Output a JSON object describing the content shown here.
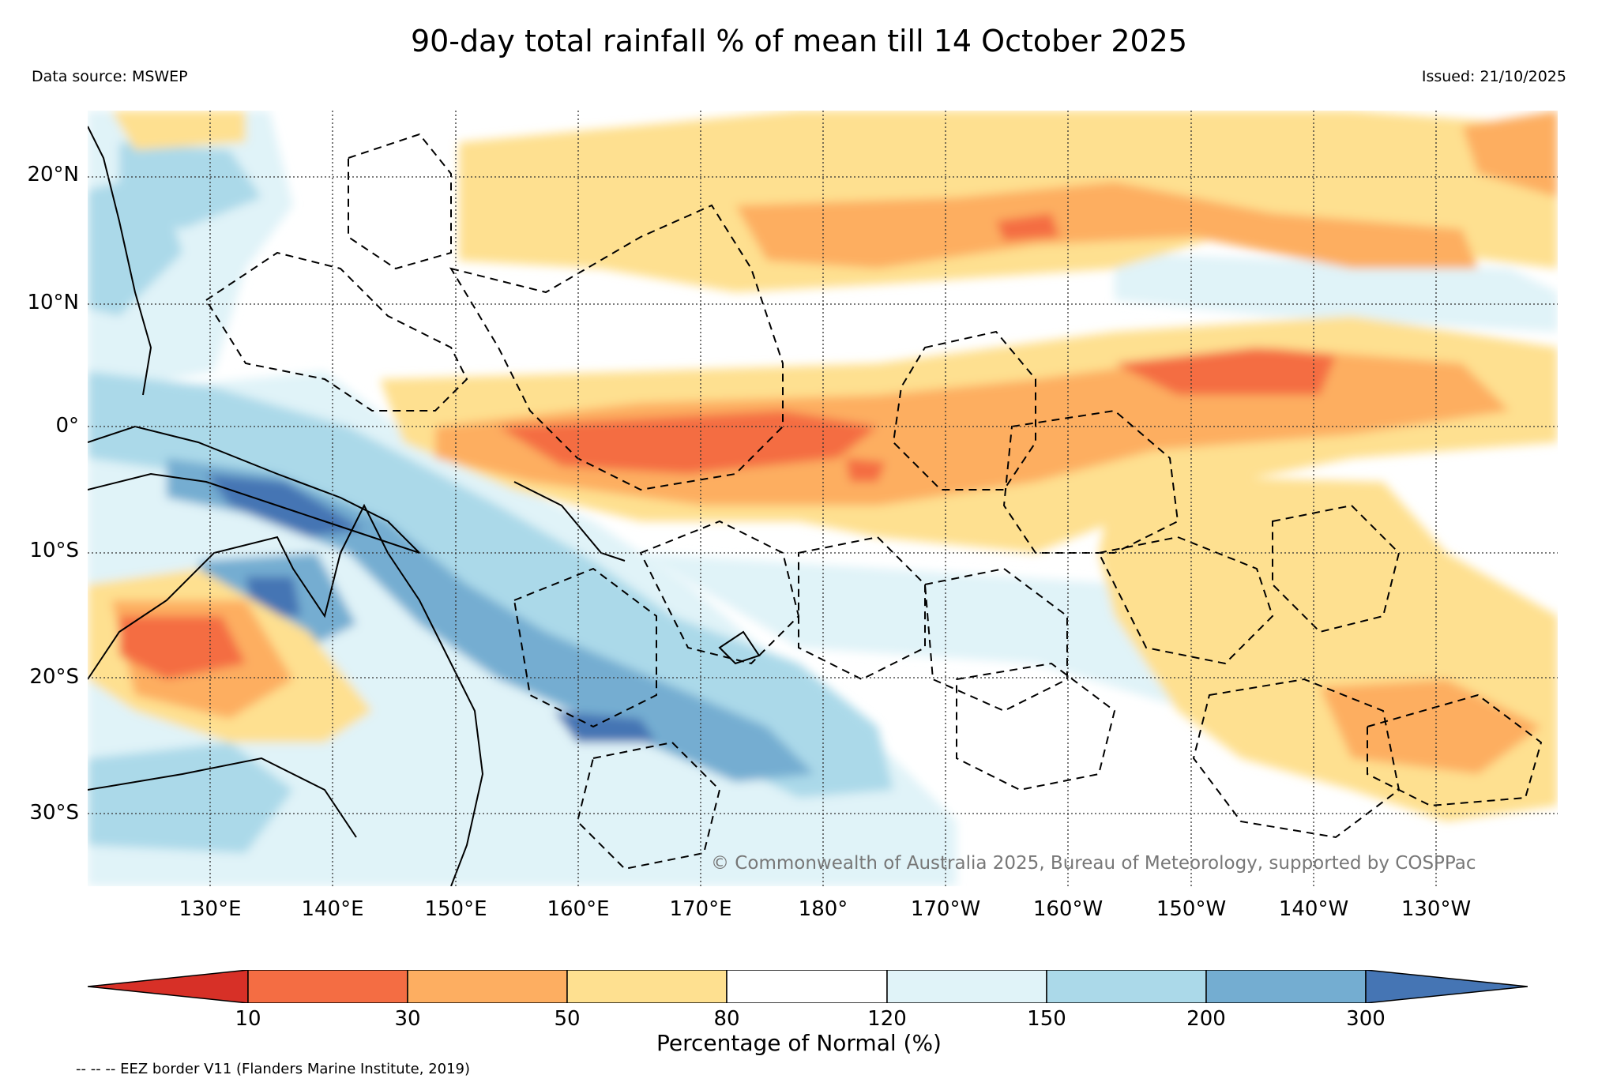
{
  "header": {
    "title": "90-day total rainfall % of mean till 14 October 2025",
    "data_source": "Data source: MSWEP",
    "issued": "Issued: 21/10/2025"
  },
  "map": {
    "lat_labels": [
      "20°N",
      "10°N",
      "0°",
      "10°S",
      "20°S",
      "30°S"
    ],
    "lon_labels": [
      "130°E",
      "140°E",
      "150°E",
      "160°E",
      "170°E",
      "180°",
      "170°W",
      "160°W",
      "150°W",
      "140°W",
      "130°W"
    ],
    "copyright": "© Commonwealth of Australia 2025, Bureau of Meteorology, supported by COSPPac"
  },
  "legend": {
    "ticks": [
      "10",
      "30",
      "50",
      "80",
      "120",
      "150",
      "200",
      "300"
    ],
    "title": "Percentage of Normal (%)",
    "colors": [
      "#d73027",
      "#f46d43",
      "#fdae61",
      "#fee090",
      "#ffffff",
      "#e0f3f8",
      "#abd9e9",
      "#74add1",
      "#4575b4"
    ]
  },
  "footer": {
    "eez_note": "-- -- -- EEZ border V11 (Flanders Marine Institute, 2019)"
  }
}
